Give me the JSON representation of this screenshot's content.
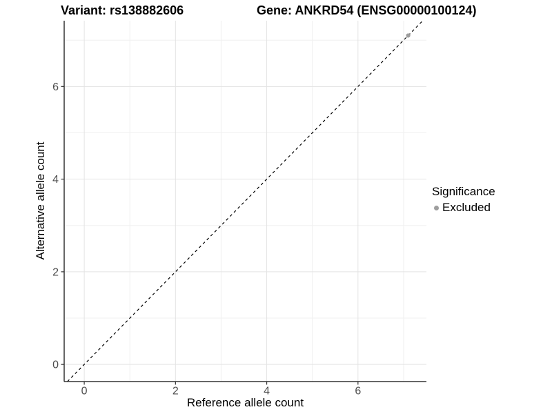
{
  "chart_data": {
    "type": "scatter",
    "title_left": "Variant: rs138882606",
    "title_right": "Gene: ANKRD54 (ENSG00000100124)",
    "xlabel": "Reference allele count",
    "ylabel": "Alternative allele count",
    "xlim": [
      -0.44,
      7.5
    ],
    "ylim": [
      -0.37,
      7.42
    ],
    "x_major_ticks": [
      0,
      2,
      4,
      6
    ],
    "y_major_ticks": [
      0,
      2,
      4,
      6
    ],
    "x_minor_ticks": [
      1,
      3,
      5,
      7
    ],
    "y_minor_ticks": [
      1,
      3,
      5,
      7
    ],
    "grid": true,
    "legend_position": "right",
    "identity_line": {
      "slope": 1,
      "intercept": 0,
      "style": "dashed",
      "color": "#000000"
    },
    "series": [
      {
        "name": "Excluded",
        "color": "#9e9e9e",
        "points": [
          {
            "x": 7.1,
            "y": 7.1
          }
        ]
      }
    ],
    "legend": {
      "title": "Significance",
      "items": [
        {
          "label": "Excluded",
          "color": "#9e9e9e"
        }
      ]
    },
    "colors": {
      "background": "#ffffff",
      "grid_major": "#e3e3e3",
      "grid_minor": "#f0f0f0",
      "axis_line": "#333333",
      "tick_mark": "#333333",
      "tick_label": "#4d4d4d",
      "text": "#000000"
    }
  }
}
